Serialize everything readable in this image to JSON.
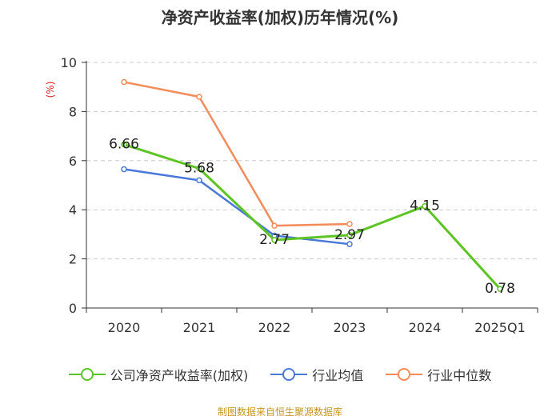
{
  "title": "净资产收益率(加权)历年情况(%)",
  "source": "制图数据来自恒生聚源数据库",
  "colors": {
    "company": "#5cc423",
    "industry_avg": "#4a78d8",
    "industry_median": "#f38b5a"
  },
  "chart_data": {
    "type": "line",
    "title": "净资产收益率(加权)历年情况(%)",
    "xlabel": "",
    "ylabel": "(%)",
    "ylim": [
      0,
      10
    ],
    "yticks": [
      0,
      2,
      4,
      6,
      8,
      10
    ],
    "grid": true,
    "legend": "bottom",
    "categories": [
      "2020",
      "2021",
      "2022",
      "2023",
      "2024",
      "2025Q1"
    ],
    "series": [
      {
        "name": "公司净资产收益率(加权)",
        "values": [
          6.66,
          5.68,
          2.77,
          2.97,
          4.15,
          0.78
        ],
        "labels": [
          "6.66",
          "5.68",
          "2.77",
          "2.97",
          "4.15",
          "0.78"
        ]
      },
      {
        "name": "行业均值",
        "values": [
          5.65,
          5.2,
          2.95,
          2.6,
          null,
          null
        ]
      },
      {
        "name": "行业中位数",
        "values": [
          9.2,
          8.6,
          3.35,
          3.42,
          null,
          null
        ]
      }
    ]
  }
}
